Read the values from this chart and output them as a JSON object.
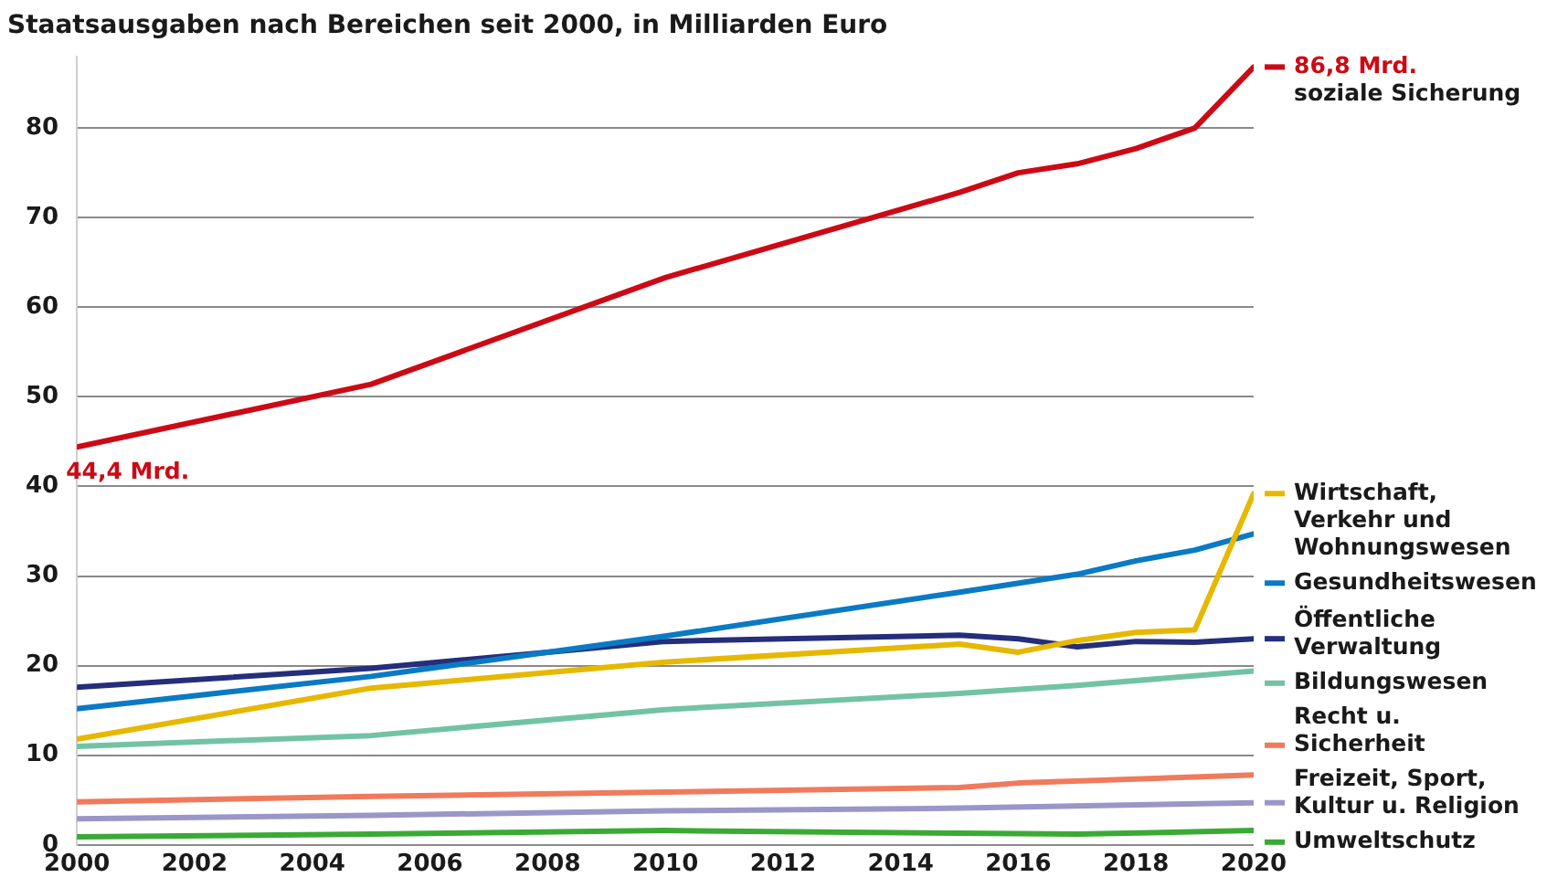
{
  "chart_data": {
    "type": "line",
    "title": "Staatsausgaben nach Bereichen seit 2000, in Milliarden Euro",
    "xlim": [
      2000,
      2020
    ],
    "xticks": [
      2000,
      2002,
      2004,
      2006,
      2008,
      2010,
      2012,
      2014,
      2016,
      2018,
      2020
    ],
    "ylim": [
      0,
      88
    ],
    "yticks": [
      0,
      10,
      20,
      30,
      40,
      50,
      60,
      70,
      80
    ],
    "grid": "y",
    "legend": "right",
    "line_style": "solid",
    "marker": "none",
    "series": [
      {
        "name": "soziale Sicherung",
        "color": "#cc0a15",
        "x": [
          2000,
          2005,
          2010,
          2015,
          2016,
          2017,
          2018,
          2019,
          2020
        ],
        "values": [
          44.4,
          51.4,
          63.3,
          72.8,
          75,
          76,
          77.7,
          80,
          86.8
        ],
        "value_labels": [
          "44,4 Mrd.",
          null,
          null,
          null,
          null,
          null,
          null,
          null,
          "86,8 Mrd."
        ]
      },
      {
        "name": "Wirtschaft, Verkehr und Wohnungswesen",
        "color": "#e6b800",
        "x": [
          2000,
          2005,
          2010,
          2015,
          2016,
          2017,
          2018,
          2019,
          2020
        ],
        "values": [
          11.8,
          17.5,
          20.4,
          22.4,
          21.5,
          22.8,
          23.7,
          24.0,
          39.2
        ]
      },
      {
        "name": "Gesundheitswesen",
        "color": "#0a7ac4",
        "x": [
          2000,
          2005,
          2010,
          2015,
          2017,
          2018,
          2019,
          2020
        ],
        "values": [
          15.2,
          18.8,
          23.3,
          28.2,
          30.2,
          31.7,
          32.9,
          34.7
        ]
      },
      {
        "name": "Öffentliche Verwaltung",
        "color": "#252e7a",
        "x": [
          2000,
          2005,
          2008,
          2010,
          2012,
          2015,
          2016,
          2017,
          2018,
          2019,
          2020
        ],
        "values": [
          17.6,
          19.7,
          21.5,
          22.7,
          23.0,
          23.4,
          23.0,
          22.1,
          22.7,
          22.6,
          23.0
        ]
      },
      {
        "name": "Bildungswesen",
        "color": "#72c3a4",
        "x": [
          2000,
          2005,
          2010,
          2015,
          2017,
          2020
        ],
        "values": [
          11.0,
          12.2,
          15.1,
          16.9,
          17.8,
          19.4
        ]
      },
      {
        "name": "Recht u. Sicherheit",
        "color": "#f07a5c",
        "x": [
          2000,
          2005,
          2010,
          2015,
          2016,
          2020
        ],
        "values": [
          4.8,
          5.4,
          5.9,
          6.4,
          6.9,
          7.8
        ]
      },
      {
        "name": "Freizeit, Sport, Kultur u. Religion",
        "color": "#9a96c8",
        "x": [
          2000,
          2005,
          2010,
          2015,
          2020
        ],
        "values": [
          2.9,
          3.3,
          3.8,
          4.1,
          4.7
        ]
      },
      {
        "name": "Umweltschutz",
        "color": "#3aaa35",
        "x": [
          2000,
          2005,
          2010,
          2015,
          2017,
          2020
        ],
        "values": [
          0.9,
          1.2,
          1.6,
          1.3,
          1.2,
          1.6
        ]
      }
    ]
  }
}
